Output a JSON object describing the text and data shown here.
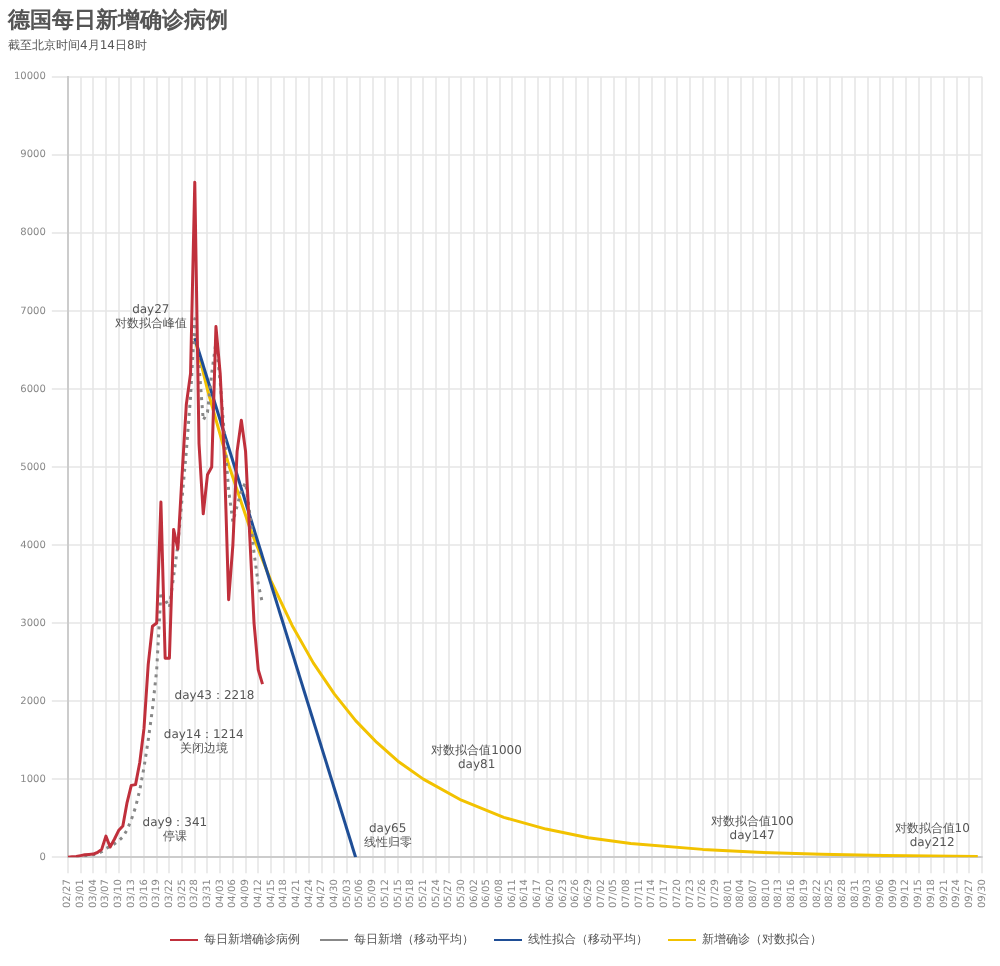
{
  "chart_data": {
    "type": "line",
    "title": "德国每日新增确诊病例",
    "subtitle": "截至北京时间4月14日8时",
    "xlim": [
      "--02-27",
      "--09-30"
    ],
    "ylim": [
      0,
      10000
    ],
    "yticks": [
      0,
      1000,
      2000,
      3000,
      4000,
      5000,
      6000,
      7000,
      8000,
      9000,
      10000
    ],
    "xticks": [
      {
        "value": "--02-27",
        "label": "02/27"
      },
      {
        "value": "--03-01",
        "label": "03/01"
      },
      {
        "value": "--03-04",
        "label": "03/04"
      },
      {
        "value": "--03-07",
        "label": "03/07"
      },
      {
        "value": "--03-10",
        "label": "03/10"
      },
      {
        "value": "--03-13",
        "label": "03/13"
      },
      {
        "value": "--03-16",
        "label": "03/16"
      },
      {
        "value": "--03-19",
        "label": "03/19"
      },
      {
        "value": "--03-22",
        "label": "03/22"
      },
      {
        "value": "--03-25",
        "label": "03/25"
      },
      {
        "value": "--03-28",
        "label": "03/28"
      },
      {
        "value": "--03-31",
        "label": "03/31"
      },
      {
        "value": "--04-03",
        "label": "04/03"
      },
      {
        "value": "--04-06",
        "label": "04/06"
      },
      {
        "value": "--04-09",
        "label": "04/09"
      },
      {
        "value": "--04-12",
        "label": "04/12"
      },
      {
        "value": "--04-15",
        "label": "04/15"
      },
      {
        "value": "--04-18",
        "label": "04/18"
      },
      {
        "value": "--04-21",
        "label": "04/21"
      },
      {
        "value": "--04-24",
        "label": "04/24"
      },
      {
        "value": "--04-27",
        "label": "04/27"
      },
      {
        "value": "--04-30",
        "label": "04/30"
      },
      {
        "value": "--05-03",
        "label": "05/03"
      },
      {
        "value": "--05-06",
        "label": "05/06"
      },
      {
        "value": "--05-09",
        "label": "05/09"
      },
      {
        "value": "--05-12",
        "label": "05/12"
      },
      {
        "value": "--05-15",
        "label": "05/15"
      },
      {
        "value": "--05-18",
        "label": "05/18"
      },
      {
        "value": "--05-21",
        "label": "05/21"
      },
      {
        "value": "--05-24",
        "label": "05/24"
      },
      {
        "value": "--05-27",
        "label": "05/27"
      },
      {
        "value": "--05-30",
        "label": "05/30"
      },
      {
        "value": "--06-02",
        "label": "06/02"
      },
      {
        "value": "--06-05",
        "label": "06/05"
      },
      {
        "value": "--06-08",
        "label": "06/08"
      },
      {
        "value": "--06-11",
        "label": "06/11"
      },
      {
        "value": "--06-14",
        "label": "06/14"
      },
      {
        "value": "--06-17",
        "label": "06/17"
      },
      {
        "value": "--06-20",
        "label": "06/20"
      },
      {
        "value": "--06-23",
        "label": "06/23"
      },
      {
        "value": "--06-26",
        "label": "06/26"
      },
      {
        "value": "--06-29",
        "label": "06/29"
      },
      {
        "value": "--07-02",
        "label": "07/02"
      },
      {
        "value": "--07-05",
        "label": "07/05"
      },
      {
        "value": "--07-08",
        "label": "07/08"
      },
      {
        "value": "--07-11",
        "label": "07/11"
      },
      {
        "value": "--07-14",
        "label": "07/14"
      },
      {
        "value": "--07-17",
        "label": "07/17"
      },
      {
        "value": "--07-20",
        "label": "07/20"
      },
      {
        "value": "--07-23",
        "label": "07/23"
      },
      {
        "value": "--07-26",
        "label": "07/26"
      },
      {
        "value": "--07-29",
        "label": "07/29"
      },
      {
        "value": "--08-01",
        "label": "08/01"
      },
      {
        "value": "--08-04",
        "label": "08/04"
      },
      {
        "value": "--08-07",
        "label": "08/07"
      },
      {
        "value": "--08-10",
        "label": "08/10"
      },
      {
        "value": "--08-13",
        "label": "08/13"
      },
      {
        "value": "--08-16",
        "label": "08/16"
      },
      {
        "value": "--08-19",
        "label": "08/19"
      },
      {
        "value": "--08-22",
        "label": "08/22"
      },
      {
        "value": "--08-25",
        "label": "08/25"
      },
      {
        "value": "--08-28",
        "label": "08/28"
      },
      {
        "value": "--08-31",
        "label": "08/31"
      },
      {
        "value": "--09-03",
        "label": "09/03"
      },
      {
        "value": "--09-06",
        "label": "09/06"
      },
      {
        "value": "--09-09",
        "label": "09/09"
      },
      {
        "value": "--09-12",
        "label": "09/12"
      },
      {
        "value": "--09-15",
        "label": "09/15"
      },
      {
        "value": "--09-18",
        "label": "09/18"
      },
      {
        "value": "--09-21",
        "label": "09/21"
      },
      {
        "value": "--09-24",
        "label": "09/24"
      },
      {
        "value": "--09-27",
        "label": "09/27"
      },
      {
        "value": "--09-30",
        "label": "09/30"
      }
    ],
    "grid": true,
    "legend": "bottom",
    "series": [
      {
        "name": "每日新增确诊病例",
        "color": "#c0303c",
        "x": [
          "--02-27",
          "--02-28",
          "--02-29",
          "--03-01",
          "--03-02",
          "--03-03",
          "--03-04",
          "--03-05",
          "--03-06",
          "--03-07",
          "--03-08",
          "--03-09",
          "--03-10",
          "--03-11",
          "--03-12",
          "--03-13",
          "--03-14",
          "--03-15",
          "--03-16",
          "--03-17",
          "--03-18",
          "--03-19",
          "--03-20",
          "--03-21",
          "--03-22",
          "--03-23",
          "--03-24",
          "--03-25",
          "--03-26",
          "--03-27",
          "--03-28",
          "--03-29",
          "--03-30",
          "--03-31",
          "--04-01",
          "--04-02",
          "--04-03",
          "--04-04",
          "--04-05",
          "--04-06",
          "--04-07",
          "--04-08",
          "--04-09",
          "--04-10",
          "--04-11",
          "--04-12",
          "--04-13"
        ],
        "values": [
          0,
          5,
          10,
          20,
          30,
          35,
          40,
          60,
          100,
          270,
          130,
          230,
          341,
          400,
          700,
          920,
          930,
          1214,
          1650,
          2470,
          2960,
          3000,
          4550,
          2550,
          2550,
          4200,
          3950,
          4900,
          5800,
          6200,
          8650,
          5300,
          4400,
          4900,
          5000,
          6800,
          6200,
          5100,
          3300,
          4000,
          5200,
          5600,
          5200,
          4100,
          3000,
          2400,
          2218
        ]
      },
      {
        "name": "每日新增（移动平均）",
        "color": "#888888",
        "line_style": "dotted",
        "x": [
          "--02-29",
          "--03-01",
          "--03-02",
          "--03-03",
          "--03-04",
          "--03-05",
          "--03-06",
          "--03-07",
          "--03-08",
          "--03-09",
          "--03-10",
          "--03-11",
          "--03-12",
          "--03-13",
          "--03-14",
          "--03-15",
          "--03-16",
          "--03-17",
          "--03-18",
          "--03-19",
          "--03-20",
          "--03-21",
          "--03-22",
          "--03-23",
          "--03-24",
          "--03-25",
          "--03-26",
          "--03-27",
          "--03-28",
          "--03-29",
          "--03-30",
          "--03-31",
          "--04-01",
          "--04-02",
          "--04-03",
          "--04-04",
          "--04-05",
          "--04-06",
          "--04-07",
          "--04-08",
          "--04-09",
          "--04-10",
          "--04-11",
          "--04-12",
          "--04-13"
        ],
        "values": [
          5,
          10,
          18,
          25,
          32,
          45,
          70,
          110,
          140,
          170,
          210,
          260,
          350,
          480,
          640,
          860,
          1150,
          1500,
          1900,
          2400,
          3400,
          3300,
          3200,
          3600,
          4000,
          4600,
          5200,
          5900,
          6900,
          6300,
          5600,
          5700,
          6200,
          6600,
          6100,
          5400,
          4700,
          4300,
          4500,
          4700,
          4800,
          4400,
          3900,
          3500,
          3250
        ]
      },
      {
        "name": "线性拟合（移动平均）",
        "color": "#1f4e96",
        "x": [
          "--03-28",
          "--05-05"
        ],
        "values": [
          6650,
          0
        ]
      },
      {
        "name": "新增确诊（对数拟合）",
        "color": "#f2c200",
        "x": [
          "--03-28",
          "--03-31",
          "--04-05",
          "--04-10",
          "--04-15",
          "--04-20",
          "--04-25",
          "--04-30",
          "--05-05",
          "--05-10",
          "--05-15",
          "--05-21",
          "--05-30",
          "--06-09",
          "--06-19",
          "--06-29",
          "--07-09",
          "--07-26",
          "--08-08",
          "--08-23",
          "--09-07",
          "--09-29"
        ],
        "values": [
          6650,
          5990,
          5030,
          4220,
          3540,
          2970,
          2490,
          2090,
          1750,
          1470,
          1230,
          1000,
          730,
          510,
          360,
          250,
          175,
          100,
          63,
          37,
          22,
          10
        ]
      }
    ],
    "annotations": [
      {
        "text": "day9：341\n停课",
        "x": "--03-10",
        "y": 341
      },
      {
        "text": "day14：1214\n关闭边境",
        "x": "--03-15",
        "y": 1214
      },
      {
        "text": "day27\n对数拟合峰值",
        "x": "--03-28",
        "y": 6650
      },
      {
        "text": "day43：2218",
        "x": "--04-13",
        "y": 2218
      },
      {
        "text": "day65\n线性归零",
        "x": "--05-05",
        "y": 0
      },
      {
        "text": "对数拟合值1000\nday81",
        "x": "--05-21",
        "y": 1000
      },
      {
        "text": "对数拟合值100\nday147",
        "x": "--07-26",
        "y": 100
      },
      {
        "text": "对数拟合值10\nday212",
        "x": "--09-29",
        "y": 10
      }
    ]
  }
}
